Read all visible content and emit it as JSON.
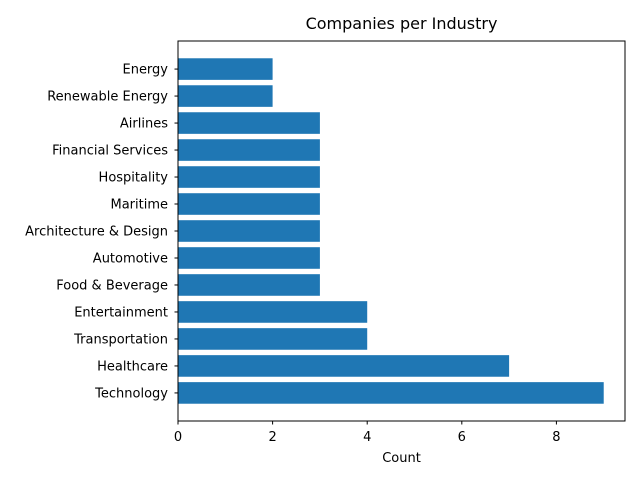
{
  "chart_data": {
    "type": "bar",
    "orientation": "horizontal",
    "title": "Companies per Industry",
    "xlabel": "Count",
    "ylabel": "",
    "categories": [
      "Technology",
      "Healthcare",
      "Transportation",
      "Entertainment",
      "Food & Beverage",
      "Automotive",
      "Architecture & Design",
      "Maritime",
      "Hospitality",
      "Financial Services",
      "Airlines",
      "Renewable Energy",
      "Energy"
    ],
    "values": [
      9,
      7,
      4,
      4,
      3,
      3,
      3,
      3,
      3,
      3,
      3,
      2,
      2
    ],
    "xlim": [
      0,
      9.45
    ],
    "xticks": [
      "0",
      "2",
      "4",
      "6",
      "8"
    ],
    "grid": false,
    "bar_color": "#1f77b4"
  }
}
